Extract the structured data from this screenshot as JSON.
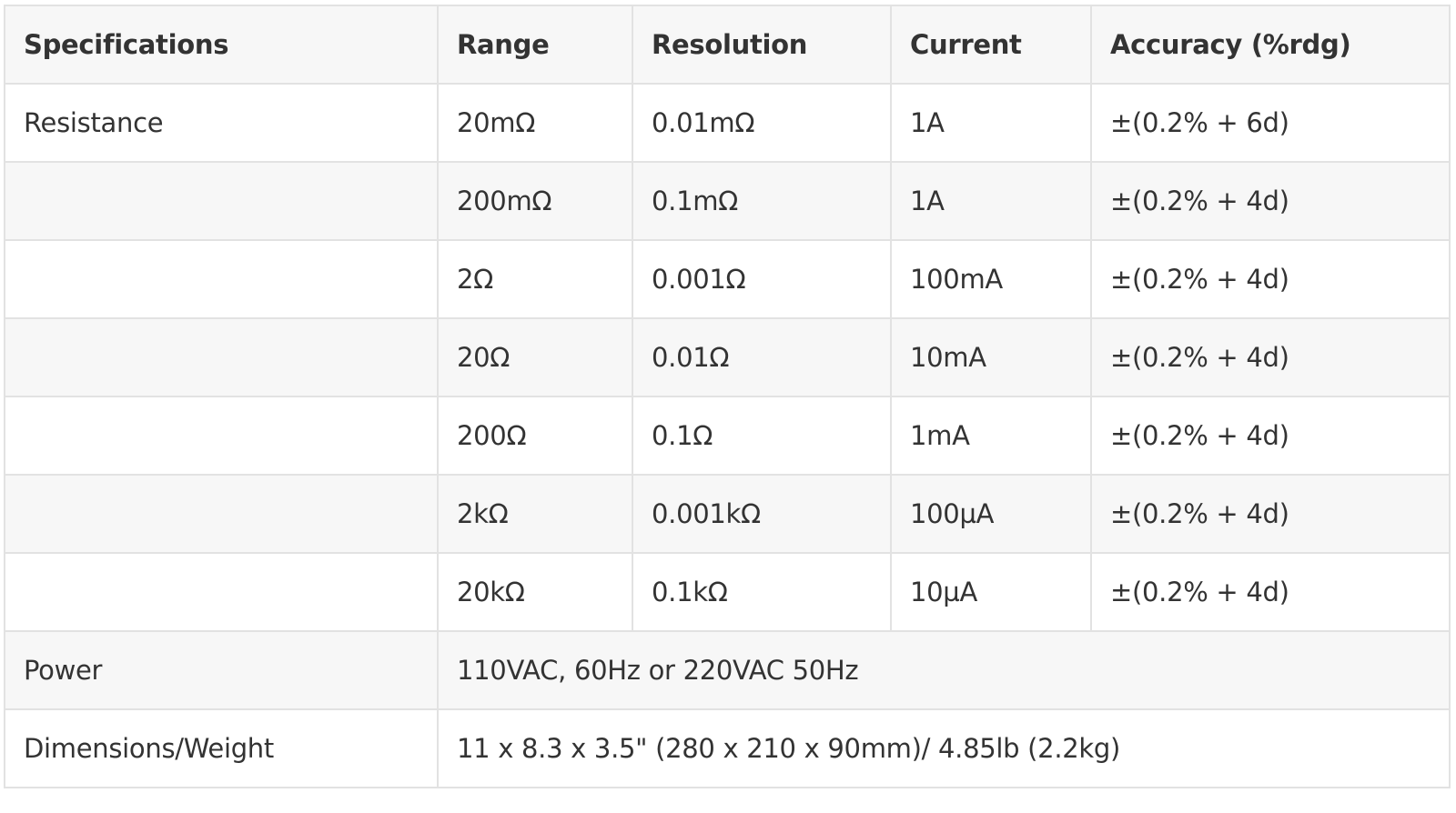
{
  "headers": [
    "Specifications",
    "Range",
    "Resolution",
    "Current",
    "Accuracy (%rdg)"
  ],
  "resistance_label": "Resistance",
  "rows": [
    {
      "range": "20mΩ",
      "resolution": "0.01mΩ",
      "current": "1A",
      "accuracy": "±(0.2% + 6d)"
    },
    {
      "range": "200mΩ",
      "resolution": "0.1mΩ",
      "current": "1A",
      "accuracy": "±(0.2% + 4d)"
    },
    {
      "range": "2Ω",
      "resolution": "0.001Ω",
      "current": "100mA",
      "accuracy": "±(0.2% + 4d)"
    },
    {
      "range": "20Ω",
      "resolution": "0.01Ω",
      "current": "10mA",
      "accuracy": "±(0.2% + 4d)"
    },
    {
      "range": "200Ω",
      "resolution": "0.1Ω",
      "current": "1mA",
      "accuracy": "±(0.2% + 4d)"
    },
    {
      "range": "2kΩ",
      "resolution": "0.001kΩ",
      "current": "100µA",
      "accuracy": "±(0.2% + 4d)"
    },
    {
      "range": "20kΩ",
      "resolution": "0.1kΩ",
      "current": "10µA",
      "accuracy": "±(0.2% + 4d)"
    }
  ],
  "power": {
    "label": "Power",
    "value": "110VAC, 60Hz or 220VAC 50Hz"
  },
  "dimensions": {
    "label": "Dimensions/Weight",
    "value": "11 x 8.3 x 3.5\" (280 x 210 x 90mm)/ 4.85lb (2.2kg)"
  }
}
